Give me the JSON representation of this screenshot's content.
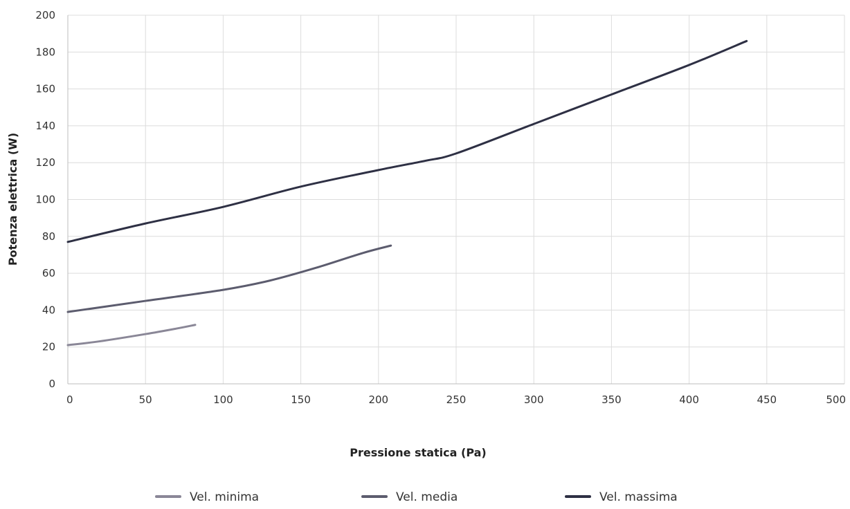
{
  "chart_data": {
    "type": "line",
    "title": "",
    "xlabel": "Pressione statica (Pa)",
    "ylabel": "Potenza elettrica (W)",
    "xlim": [
      0,
      500
    ],
    "ylim": [
      0,
      200
    ],
    "x_ticks": [
      0,
      50,
      100,
      150,
      200,
      250,
      300,
      350,
      400,
      450,
      500
    ],
    "y_ticks": [
      0,
      20,
      40,
      60,
      80,
      100,
      120,
      140,
      160,
      180,
      200
    ],
    "grid": true,
    "legend_position": "bottom",
    "series": [
      {
        "name": "Vel. minima",
        "color": "#8a8797",
        "points": [
          [
            0,
            21
          ],
          [
            20,
            23
          ],
          [
            50,
            27
          ],
          [
            70,
            30
          ],
          [
            82,
            32
          ]
        ]
      },
      {
        "name": "Vel. media",
        "color": "#5c5c6e",
        "points": [
          [
            0,
            39
          ],
          [
            50,
            45
          ],
          [
            100,
            51
          ],
          [
            130,
            56
          ],
          [
            160,
            63
          ],
          [
            190,
            71
          ],
          [
            208,
            75
          ]
        ]
      },
      {
        "name": "Vel. massima",
        "color": "#2e3044",
        "points": [
          [
            0,
            77
          ],
          [
            50,
            87
          ],
          [
            100,
            96
          ],
          [
            150,
            107
          ],
          [
            200,
            116
          ],
          [
            230,
            121
          ],
          [
            250,
            125
          ],
          [
            300,
            141
          ],
          [
            350,
            157
          ],
          [
            400,
            173
          ],
          [
            437,
            186
          ]
        ]
      }
    ]
  }
}
